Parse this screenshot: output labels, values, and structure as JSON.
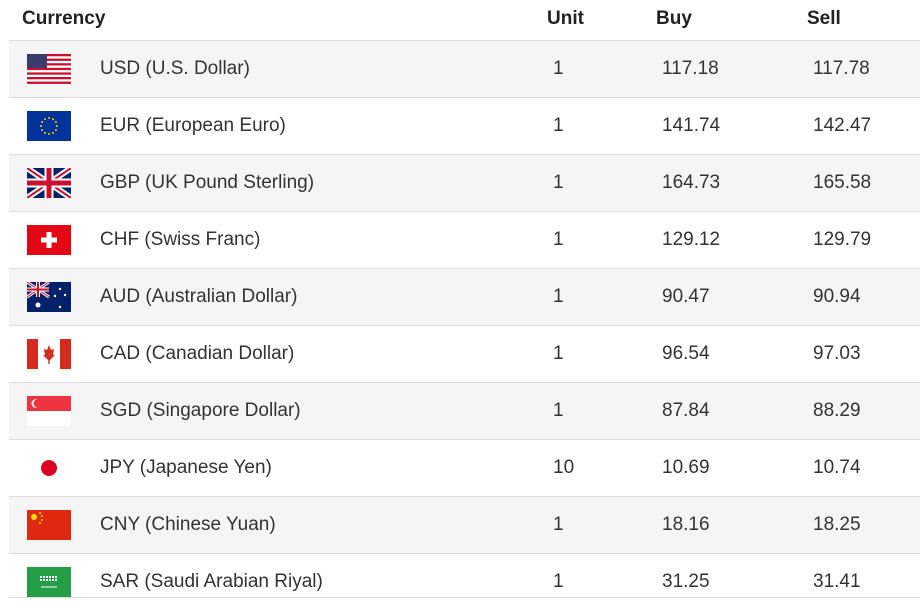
{
  "headers": {
    "currency": "Currency",
    "unit": "Unit",
    "buy": "Buy",
    "sell": "Sell"
  },
  "rows": [
    {
      "flag": "us-flag-icon",
      "name": "USD (U.S. Dollar)",
      "unit": "1",
      "buy": "117.18",
      "sell": "117.78"
    },
    {
      "flag": "eu-flag-icon",
      "name": "EUR (European Euro)",
      "unit": "1",
      "buy": "141.74",
      "sell": "142.47"
    },
    {
      "flag": "uk-flag-icon",
      "name": "GBP (UK Pound Sterling)",
      "unit": "1",
      "buy": "164.73",
      "sell": "165.58"
    },
    {
      "flag": "swiss-flag-icon",
      "name": "CHF (Swiss Franc)",
      "unit": "1",
      "buy": "129.12",
      "sell": "129.79"
    },
    {
      "flag": "australia-flag-icon",
      "name": "AUD (Australian Dollar)",
      "unit": "1",
      "buy": "90.47",
      "sell": "90.94"
    },
    {
      "flag": "canada-flag-icon",
      "name": "CAD (Canadian Dollar)",
      "unit": "1",
      "buy": "96.54",
      "sell": "97.03"
    },
    {
      "flag": "singapore-flag-icon",
      "name": "SGD (Singapore Dollar)",
      "unit": "1",
      "buy": "87.84",
      "sell": "88.29"
    },
    {
      "flag": "japan-flag-icon",
      "name": "JPY (Japanese Yen)",
      "unit": "10",
      "buy": "10.69",
      "sell": "10.74"
    },
    {
      "flag": "china-flag-icon",
      "name": "CNY (Chinese Yuan)",
      "unit": "1",
      "buy": "18.16",
      "sell": "18.25"
    },
    {
      "flag": "saudi-flag-icon",
      "name": "SAR (Saudi Arabian Riyal)",
      "unit": "1",
      "buy": "31.25",
      "sell": "31.41"
    }
  ]
}
